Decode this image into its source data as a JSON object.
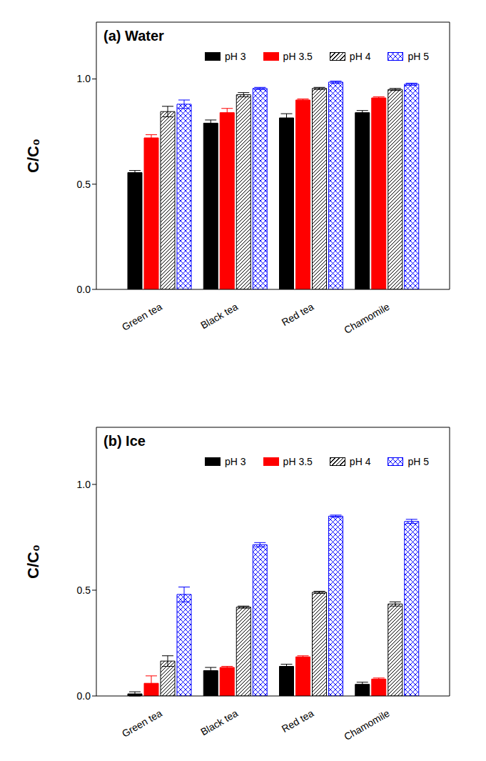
{
  "chart_data": [
    {
      "type": "bar",
      "title": "(a) Water",
      "ylabel": "C/C₀",
      "categories": [
        "Green tea",
        "Black tea",
        "Red tea",
        "Chamomile"
      ],
      "series": [
        {
          "name": "pH 3",
          "color": "#000000",
          "values": [
            0.555,
            0.79,
            0.815,
            0.84
          ],
          "errors": [
            0.01,
            0.015,
            0.02,
            0.01
          ]
        },
        {
          "name": "pH 3.5",
          "color": "#ff0000",
          "values": [
            0.72,
            0.84,
            0.9,
            0.91
          ],
          "errors": [
            0.015,
            0.02,
            0.005,
            0.005
          ]
        },
        {
          "name": "pH 4",
          "color": "#000000",
          "values": [
            0.845,
            0.925,
            0.955,
            0.95
          ],
          "errors": [
            0.025,
            0.01,
            0.005,
            0.005
          ]
        },
        {
          "name": "pH 5",
          "color": "#0000ff",
          "values": [
            0.88,
            0.955,
            0.985,
            0.975
          ],
          "errors": [
            0.02,
            0.005,
            0.005,
            0.005
          ]
        }
      ],
      "ylim": [
        0,
        1.27
      ],
      "yticks": [
        {
          "value": 0,
          "label": "0.0"
        },
        0.5,
        {
          "value": 1,
          "label": "1.0"
        }
      ],
      "legend": "upper right",
      "grid": false
    },
    {
      "type": "bar",
      "title": "(b) Ice",
      "ylabel": "C/C₀",
      "categories": [
        "Green tea",
        "Black tea",
        "Red tea",
        "Chamomile"
      ],
      "series": [
        {
          "name": "pH 3",
          "color": "#000000",
          "values": [
            0.01,
            0.12,
            0.14,
            0.055
          ],
          "errors": [
            0.01,
            0.015,
            0.01,
            0.01
          ]
        },
        {
          "name": "pH 3.5",
          "color": "#ff0000",
          "values": [
            0.06,
            0.135,
            0.185,
            0.08
          ],
          "errors": [
            0.035,
            0.005,
            0.005,
            0.005
          ]
        },
        {
          "name": "pH 4",
          "color": "#000000",
          "values": [
            0.165,
            0.42,
            0.49,
            0.435
          ],
          "errors": [
            0.025,
            0.005,
            0.005,
            0.01
          ]
        },
        {
          "name": "pH 5",
          "color": "#0000ff",
          "values": [
            0.48,
            0.715,
            0.85,
            0.825
          ],
          "errors": [
            0.035,
            0.01,
            0.005,
            0.01
          ]
        }
      ],
      "ylim": [
        0,
        1.27
      ],
      "yticks": [
        {
          "value": 0,
          "label": "0.0"
        },
        0.5,
        {
          "value": 1,
          "label": "1.0"
        }
      ],
      "legend": "upper right",
      "grid": false
    }
  ]
}
